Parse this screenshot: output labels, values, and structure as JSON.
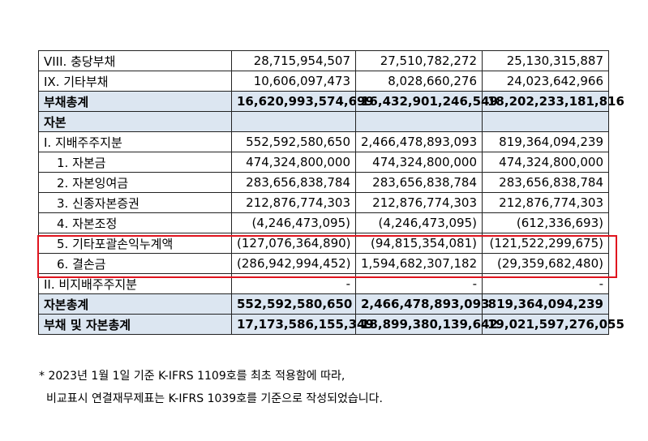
{
  "rows": [
    {
      "label": "VIII. 충당부채",
      "v1": "28,715,954,507",
      "v2": "27,510,782,272",
      "v3": "25,130,315,887",
      "style": "normal"
    },
    {
      "label": "IX. 기타부채",
      "v1": "10,606,097,473",
      "v2": "8,028,660,276",
      "v3": "24,023,642,966",
      "style": "normal"
    },
    {
      "label": "부채총계",
      "v1": "16,620,993,574,699",
      "v2": "16,432,901,246,549",
      "v3": "18,202,233,181,816",
      "style": "hl"
    },
    {
      "label": "자본",
      "v1": "",
      "v2": "",
      "v3": "",
      "style": "sec"
    },
    {
      "label": "I. 지배주주지분",
      "v1": "552,592,580,650",
      "v2": "2,466,478,893,093",
      "v3": "819,364,094,239",
      "style": "normal"
    },
    {
      "label": "1. 자본금",
      "v1": "474,324,800,000",
      "v2": "474,324,800,000",
      "v3": "474,324,800,000",
      "style": "ind"
    },
    {
      "label": "2. 자본잉여금",
      "v1": "283,656,838,784",
      "v2": "283,656,838,784",
      "v3": "283,656,838,784",
      "style": "ind"
    },
    {
      "label": "3. 신종자본증권",
      "v1": "212,876,774,303",
      "v2": "212,876,774,303",
      "v3": "212,876,774,303",
      "style": "ind"
    },
    {
      "label": "4. 자본조정",
      "v1": "(4,246,473,095)",
      "v2": "(4,246,473,095)",
      "v3": "(612,336,693)",
      "style": "ind"
    },
    {
      "label": "5. 기타포괄손익누계액",
      "v1": "(127,076,364,890)",
      "v2": "(94,815,354,081)",
      "v3": "(121,522,299,675)",
      "style": "ind"
    },
    {
      "label": "6. 결손금",
      "v1": "(286,942,994,452)",
      "v2": "1,594,682,307,182",
      "v3": "(29,359,682,480)",
      "style": "ind"
    },
    {
      "label": "II. 비지배주주지분",
      "v1": "-",
      "v2": "-",
      "v3": "-",
      "style": "normal"
    },
    {
      "label": "자본총계",
      "v1": "552,592,580,650",
      "v2": "2,466,478,893,093",
      "v3": "819,364,094,239",
      "style": "hl"
    },
    {
      "label": "부채 및 자본총계",
      "v1": "17,173,586,155,349",
      "v2": "18,899,380,139,642",
      "v3": "19,021,597,276,055",
      "style": "hl"
    }
  ],
  "notes": {
    "line1": "* 2023년 1월 1일 기준 K-IFRS 1109호를 최초 적용함에 따라,",
    "line2": "비교표시 연결재무제표는 K-IFRS 1039호를 기준으로 작성되었습니다."
  },
  "highlight_color": "#e0141e"
}
